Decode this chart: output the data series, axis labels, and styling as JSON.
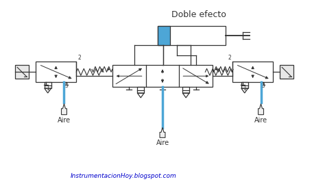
{
  "title": "Doble efecto",
  "subtitle": "InstrumentacionHoy.blogspot.com",
  "bg_color": "#ffffff",
  "blue_color": "#4da6d6",
  "gray_color": "#888888",
  "dark_color": "#222222",
  "line_color": "#333333",
  "aire_label": "Aire",
  "figsize": [
    4.74,
    2.75
  ],
  "dpi": 100
}
